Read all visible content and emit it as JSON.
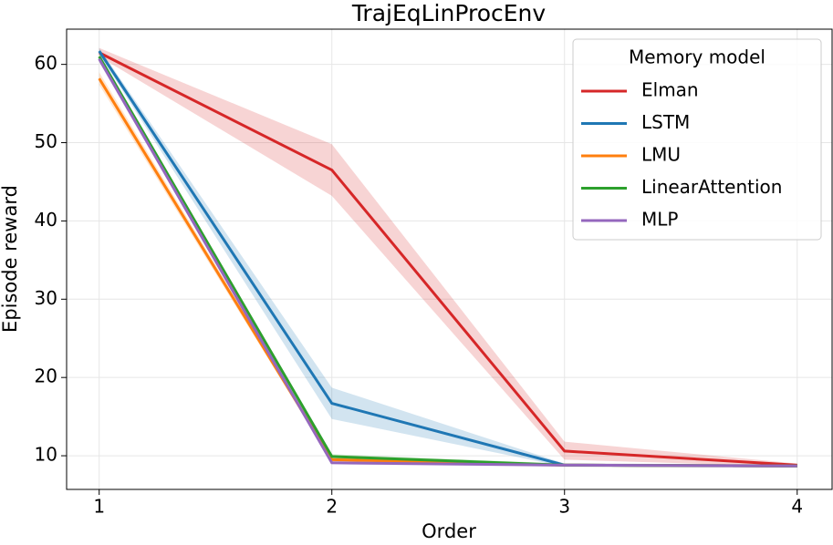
{
  "chart_data": {
    "type": "line",
    "title": "TrajEqLinProcEnv",
    "x_label": "Order",
    "y_label": "Episode reward",
    "x": [
      1,
      2,
      3,
      4
    ],
    "xlim": [
      0.86,
      4.15
    ],
    "ylim": [
      5.7,
      64.5
    ],
    "xticks": [
      1,
      2,
      3,
      4
    ],
    "yticks": [
      10,
      20,
      30,
      40,
      50,
      60
    ],
    "grid": true,
    "legend_title": "Memory model",
    "legend_position": "upper right",
    "series": [
      {
        "name": "Elman",
        "color": "#d62728",
        "values": [
          61.5,
          46.5,
          10.6,
          8.8
        ],
        "lower": [
          61.0,
          43.2,
          9.5,
          8.6
        ],
        "upper": [
          62.1,
          49.8,
          11.8,
          9.0
        ]
      },
      {
        "name": "LSTM",
        "color": "#1f77b4",
        "values": [
          61.7,
          16.7,
          8.8,
          8.7
        ],
        "lower": [
          61.3,
          14.7,
          8.6,
          8.5
        ],
        "upper": [
          62.1,
          18.7,
          9.0,
          8.9
        ]
      },
      {
        "name": "LMU",
        "color": "#ff7f0e",
        "values": [
          58.2,
          9.5,
          8.8,
          8.7
        ],
        "lower": [
          57.4,
          9.2,
          8.6,
          8.5
        ],
        "upper": [
          59.0,
          9.8,
          9.0,
          8.9
        ]
      },
      {
        "name": "LinearAttention",
        "color": "#2ca02c",
        "values": [
          61.0,
          9.9,
          8.8,
          8.7
        ],
        "lower": [
          60.6,
          9.6,
          8.6,
          8.5
        ],
        "upper": [
          61.4,
          10.2,
          9.0,
          8.9
        ]
      },
      {
        "name": "MLP",
        "color": "#9467bd",
        "values": [
          60.7,
          9.1,
          8.8,
          8.7
        ],
        "lower": [
          60.3,
          8.9,
          8.6,
          8.5
        ],
        "upper": [
          61.1,
          9.3,
          9.0,
          8.9
        ]
      }
    ]
  }
}
